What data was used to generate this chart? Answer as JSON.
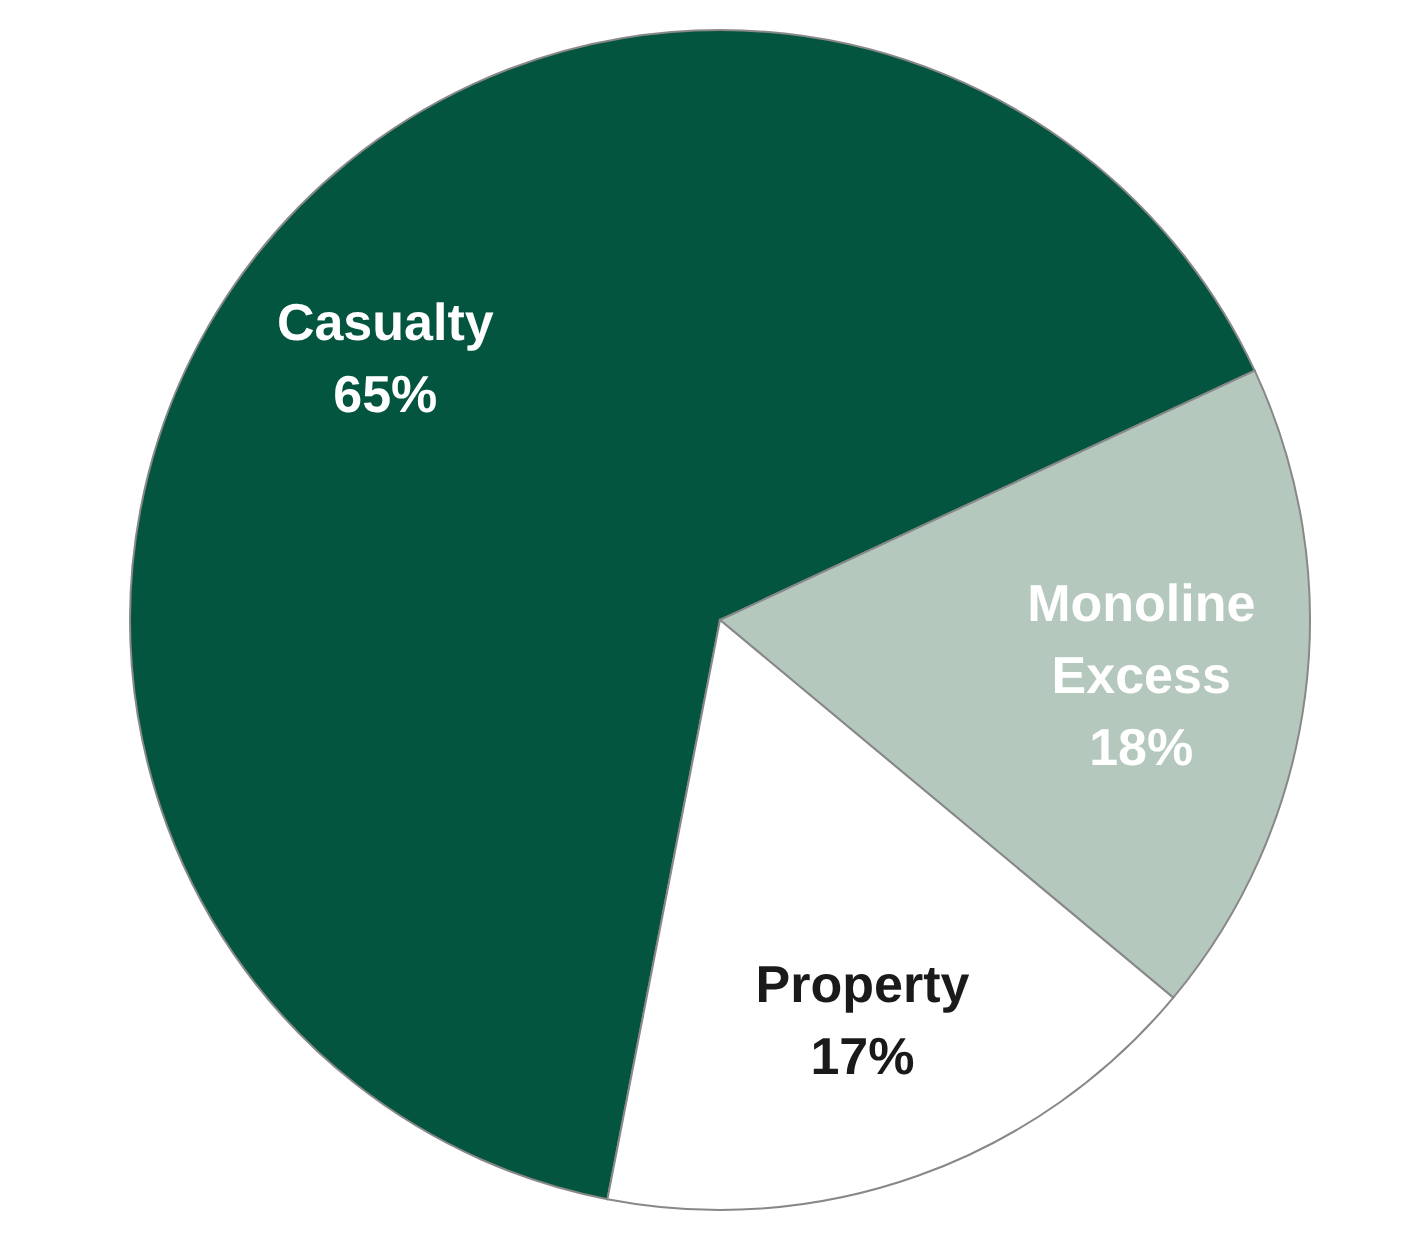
{
  "chart_data": {
    "type": "pie",
    "categories": [
      "Casualty",
      "Monoline Excess",
      "Property"
    ],
    "values": [
      65,
      18,
      17
    ],
    "colors": [
      "#04553f",
      "#b4c8be",
      "#ffffff"
    ],
    "value_labels": [
      "65%",
      "18%",
      "17%"
    ],
    "legend": false
  }
}
